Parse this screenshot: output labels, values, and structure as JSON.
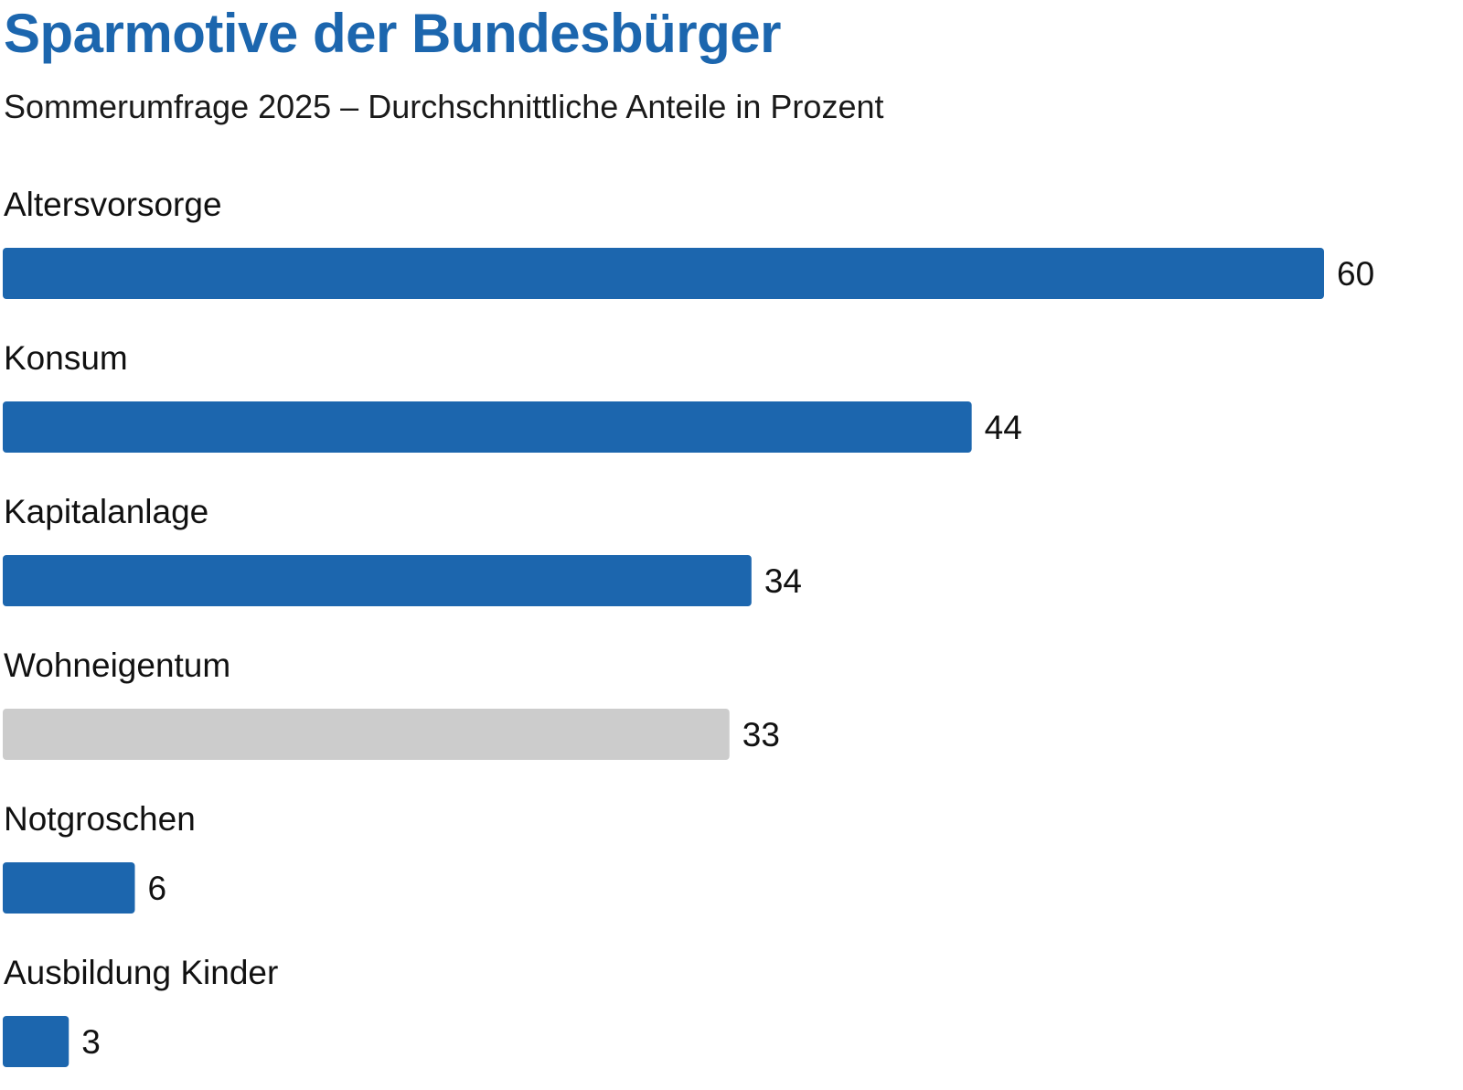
{
  "chart_data": {
    "type": "bar",
    "orientation": "horizontal",
    "title": "Sparmotive der Bundesbürger",
    "subtitle": "Sommerumfrage 2025 – Durchschnittliche Anteile in Prozent",
    "categories": [
      "Altersvorsorge",
      "Konsum",
      "Kapitalanlage",
      "Wohneigentum",
      "Notgroschen",
      "Ausbildung Kinder"
    ],
    "values": [
      60,
      44,
      34,
      33,
      6,
      3
    ],
    "bar_colors": [
      "#1c66ae",
      "#1c66ae",
      "#1c66ae",
      "#cccccc",
      "#1c66ae",
      "#1c66ae"
    ],
    "xlim": [
      0,
      60
    ],
    "grid": false,
    "legend": "none"
  }
}
